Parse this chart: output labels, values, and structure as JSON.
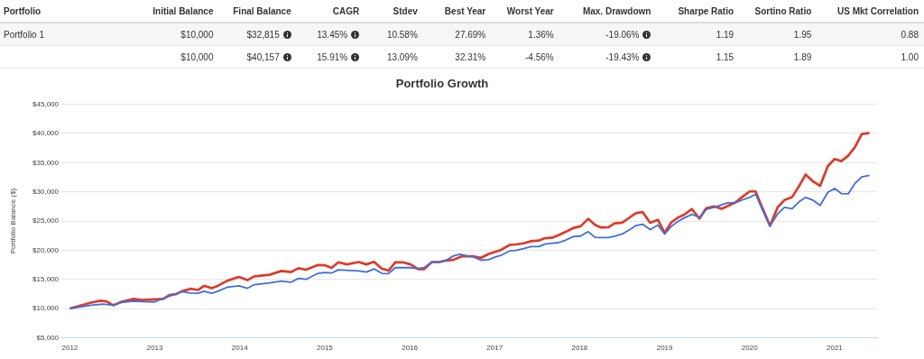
{
  "chart_data": [
    {
      "type": "other",
      "categories": [
        "Portfolio",
        "Initial Balance",
        "Final Balance",
        "CAGR",
        "Stdev",
        "Best Year",
        "Worst Year",
        "Max. Drawdown",
        "Sharpe Ratio",
        "Sortino Ratio",
        "US Mkt Correlation"
      ],
      "y_categories": [
        "Portfolio 1",
        null
      ],
      "annotations": [
        "$10,000",
        "$32,815",
        "13.45%",
        "10.58%",
        "27.69%",
        "1.36%",
        "-19.06%",
        "1.19",
        "1.95",
        "0.88",
        "$10,000",
        "$40,157",
        "15.91%",
        "13.09%",
        "32.31%",
        "-4.56%",
        "-19.43%",
        "1.15",
        "1.89",
        "1.00"
      ]
    },
    {
      "type": "line",
      "title": "Portfolio Growth",
      "ylabel": "Portfolio Balance ($)",
      "xlim": [
        2011.9,
        2021.5
      ],
      "xticks": [
        2012,
        2013,
        2014,
        2015,
        2016,
        2017,
        2018,
        2019,
        2020,
        2021
      ],
      "ylim": [
        5000,
        45000
      ],
      "yticks": [
        {
          "value": 5000,
          "label": "$5,000"
        },
        {
          "value": 10000,
          "label": "$10,000"
        },
        {
          "value": 15000,
          "label": "$15,000"
        },
        {
          "value": 20000,
          "label": "$20,000"
        },
        {
          "value": 25000,
          "label": "$25,000"
        },
        {
          "value": 30000,
          "label": "$30,000"
        },
        {
          "value": 35000,
          "label": "$35,000"
        },
        {
          "value": 40000,
          "label": "$40,000"
        },
        {
          "value": 45000,
          "label": "$45,000"
        }
      ],
      "grid": "y",
      "legend": false,
      "marker": "none",
      "line_style": "solid",
      "series": [
        {
          "color": "#3e6fd8",
          "x": [
            2012.0,
            2012.25,
            2012.39,
            2012.51,
            2012.6,
            2012.75,
            2012.85,
            2013.0,
            2013.1,
            2013.17,
            2013.32,
            2013.42,
            2013.51,
            2013.58,
            2013.67,
            2013.74,
            2013.85,
            2013.99,
            2014.09,
            2014.17,
            2014.35,
            2014.49,
            2014.6,
            2014.69,
            2014.78,
            2014.92,
            2015.0,
            2015.08,
            2015.16,
            2015.4,
            2015.49,
            2015.58,
            2015.67,
            2015.75,
            2015.83,
            2016.01,
            2016.1,
            2016.17,
            2016.26,
            2016.35,
            2016.43,
            2016.51,
            2016.59,
            2016.68,
            2016.75,
            2016.84,
            2016.93,
            2017.0,
            2017.07,
            2017.18,
            2017.25,
            2017.34,
            2017.43,
            2017.52,
            2017.59,
            2017.68,
            2017.75,
            2017.84,
            2017.93,
            2018.01,
            2018.1,
            2018.18,
            2018.25,
            2018.34,
            2018.41,
            2018.5,
            2018.59,
            2018.66,
            2018.74,
            2018.83,
            2018.92,
            2019.0,
            2019.08,
            2019.16,
            2019.23,
            2019.32,
            2019.41,
            2019.49,
            2019.58,
            2019.67,
            2019.74,
            2019.83,
            2019.92,
            2020.0,
            2020.07,
            2020.15,
            2020.24,
            2020.33,
            2020.41,
            2020.5,
            2020.58,
            2020.66,
            2020.75,
            2020.83,
            2020.92,
            2021.0,
            2021.08,
            2021.16,
            2021.24,
            2021.32,
            2021.41
          ],
          "values": [
            10000,
            10560,
            10760,
            10560,
            11020,
            11280,
            11180,
            11130,
            11740,
            12100,
            12870,
            12660,
            12610,
            12970,
            12610,
            12970,
            13640,
            13890,
            13480,
            14100,
            14400,
            14700,
            14500,
            15160,
            15000,
            16030,
            16180,
            16080,
            16640,
            16440,
            16240,
            16800,
            16030,
            15980,
            17000,
            17000,
            16850,
            17000,
            17970,
            17970,
            18280,
            18990,
            19300,
            18990,
            18840,
            18280,
            18380,
            18790,
            19090,
            19910,
            19960,
            20270,
            20620,
            20620,
            21030,
            21180,
            21290,
            21750,
            22360,
            22410,
            23170,
            22200,
            22150,
            22150,
            22410,
            22760,
            23530,
            24190,
            24450,
            23530,
            24300,
            22760,
            24090,
            24960,
            25520,
            26130,
            25620,
            27000,
            27350,
            27760,
            28120,
            28120,
            28630,
            29040,
            29600,
            26950,
            24090,
            26230,
            27350,
            27100,
            28270,
            29040,
            28530,
            27660,
            29900,
            30570,
            29700,
            29650,
            31440,
            32560,
            32815
          ]
        },
        {
          "color": "#dc3b2a",
          "x": [
            2012.0,
            2012.25,
            2012.36,
            2012.43,
            2012.51,
            2012.6,
            2012.75,
            2012.85,
            2013.1,
            2013.17,
            2013.25,
            2013.32,
            2013.42,
            2013.51,
            2013.58,
            2013.67,
            2013.74,
            2013.85,
            2013.99,
            2014.09,
            2014.17,
            2014.35,
            2014.49,
            2014.6,
            2014.69,
            2014.78,
            2014.92,
            2015.0,
            2015.08,
            2015.16,
            2015.26,
            2015.4,
            2015.49,
            2015.58,
            2015.67,
            2015.75,
            2015.83,
            2015.92,
            2016.01,
            2016.1,
            2016.17,
            2016.26,
            2016.35,
            2016.43,
            2016.51,
            2016.61,
            2016.75,
            2016.84,
            2016.93,
            2017.07,
            2017.18,
            2017.25,
            2017.34,
            2017.43,
            2017.52,
            2017.59,
            2017.68,
            2017.75,
            2017.84,
            2017.93,
            2018.01,
            2018.1,
            2018.18,
            2018.25,
            2018.34,
            2018.41,
            2018.5,
            2018.59,
            2018.66,
            2018.74,
            2018.83,
            2018.92,
            2019.0,
            2019.08,
            2019.16,
            2019.23,
            2019.32,
            2019.41,
            2019.49,
            2019.58,
            2019.67,
            2019.83,
            2019.92,
            2020.0,
            2020.07,
            2020.15,
            2020.24,
            2020.33,
            2020.41,
            2020.5,
            2020.58,
            2020.66,
            2020.75,
            2020.83,
            2020.92,
            2021.0,
            2021.08,
            2021.16,
            2021.24,
            2021.32,
            2021.41
          ],
          "values": [
            10000,
            11020,
            11330,
            11230,
            10560,
            11100,
            11650,
            11450,
            11650,
            12300,
            12460,
            12970,
            13380,
            13180,
            13890,
            13480,
            13890,
            14750,
            15420,
            14860,
            15520,
            15780,
            16440,
            16240,
            16900,
            16650,
            17460,
            17410,
            16950,
            17920,
            17560,
            17970,
            17560,
            18020,
            16850,
            16490,
            17920,
            17920,
            17560,
            16750,
            16750,
            17970,
            17970,
            18230,
            18330,
            18940,
            18940,
            18690,
            19350,
            20010,
            20930,
            20980,
            21180,
            21540,
            21650,
            22050,
            22150,
            22560,
            23170,
            23830,
            24090,
            25370,
            24340,
            23890,
            23940,
            24600,
            24700,
            25620,
            26330,
            26540,
            24700,
            25210,
            22970,
            24800,
            25620,
            26080,
            27050,
            25420,
            27200,
            27510,
            27100,
            28170,
            29190,
            30060,
            30060,
            27250,
            24190,
            27350,
            28580,
            29090,
            30930,
            32970,
            31740,
            31030,
            34390,
            35620,
            35260,
            36180,
            37660,
            39900,
            40100
          ]
        }
      ]
    }
  ]
}
